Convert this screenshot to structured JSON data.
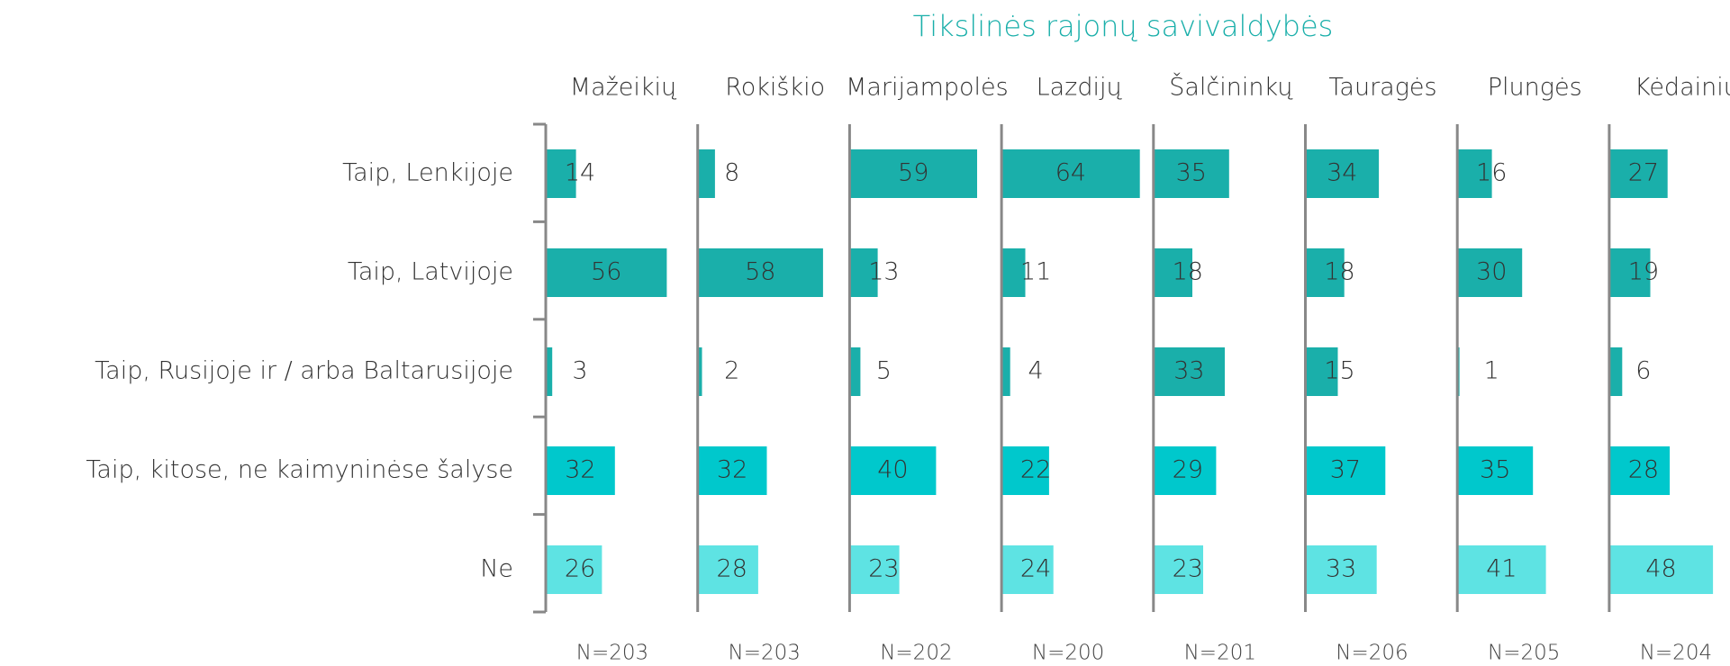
{
  "chart_data": {
    "type": "bar",
    "title": "Tikslinės rajonų savivaldybės",
    "categories": [
      "Taip, Lenkijoje",
      "Taip, Latvijoje",
      "Taip, Rusijoje ir / arba Baltarusijoje",
      "Taip, kitose, ne kaimyninėse šalyse",
      "Ne"
    ],
    "row_colors": [
      "#1aafaa",
      "#1aafaa",
      "#1aafaa",
      "#00c8cc",
      "#5ee3e3"
    ],
    "panels": [
      {
        "name": "Mažeikių",
        "n": "N=203",
        "values": [
          14,
          56,
          3,
          32,
          26
        ]
      },
      {
        "name": "Rokiškio",
        "n": "N=203",
        "values": [
          8,
          58,
          2,
          32,
          28
        ]
      },
      {
        "name": "Marijampolės",
        "n": "N=202",
        "values": [
          59,
          13,
          5,
          40,
          23
        ]
      },
      {
        "name": "Lazdijų",
        "n": "N=200",
        "values": [
          64,
          11,
          4,
          22,
          24
        ]
      },
      {
        "name": "Šalčininkų",
        "n": "N=201",
        "values": [
          35,
          18,
          33,
          29,
          23
        ]
      },
      {
        "name": "Tauragės",
        "n": "N=206",
        "values": [
          34,
          18,
          15,
          37,
          33
        ]
      },
      {
        "name": "Plungės",
        "n": "N=205",
        "values": [
          16,
          30,
          1,
          35,
          41
        ]
      },
      {
        "name": "Kėdainių",
        "n": "N=204",
        "values": [
          27,
          19,
          6,
          28,
          48
        ]
      }
    ]
  }
}
